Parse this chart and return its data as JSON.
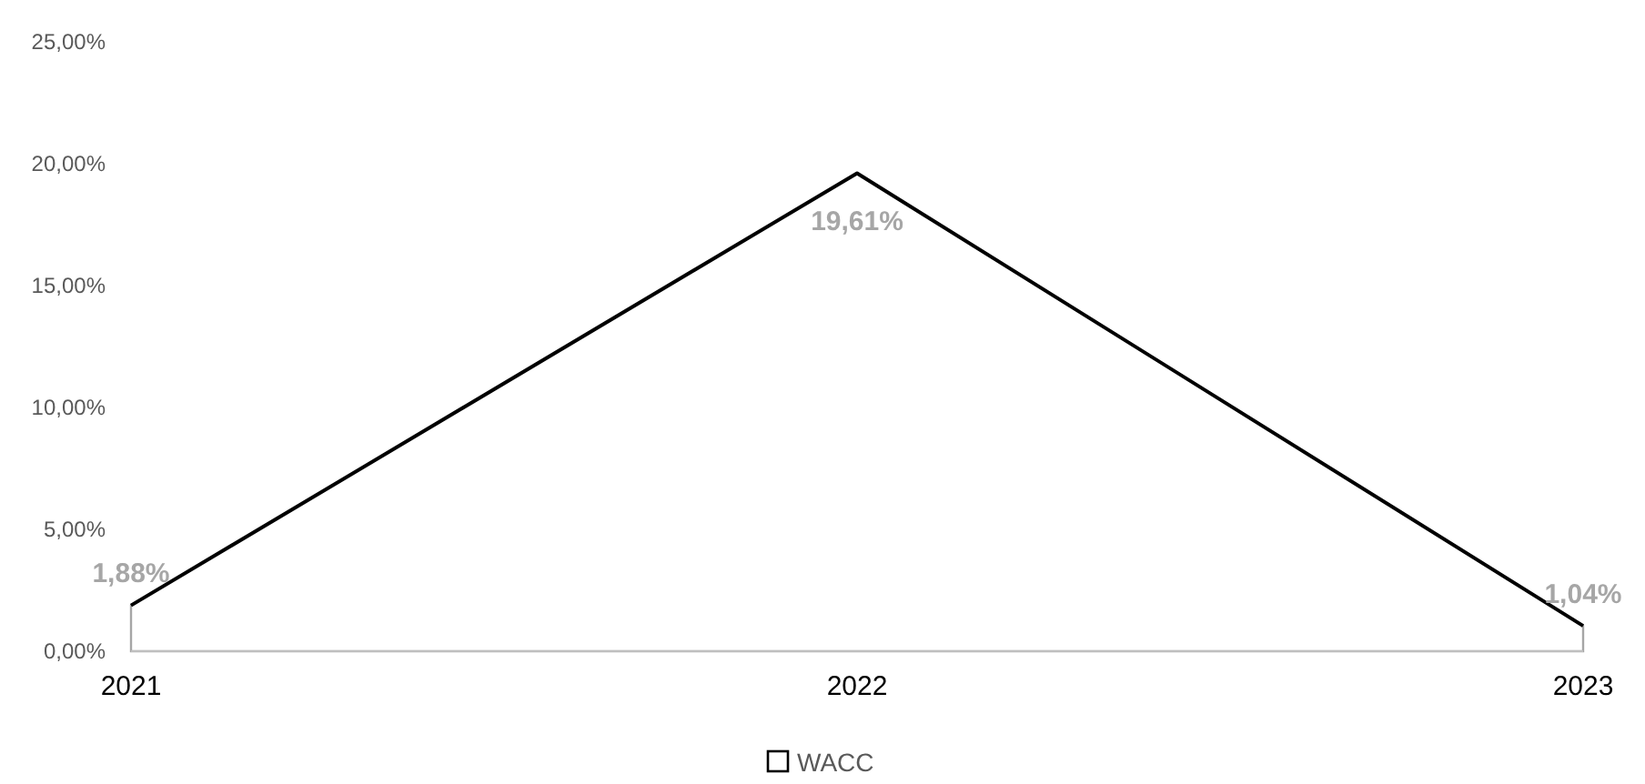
{
  "chart_data": {
    "type": "area",
    "categories": [
      "2021",
      "2022",
      "2023"
    ],
    "series": [
      {
        "name": "WACC",
        "color": "#ffffff",
        "values": [
          1.88,
          19.61,
          1.04
        ],
        "value_labels": [
          "1,88%",
          "19,61%",
          "1,04%"
        ]
      }
    ],
    "ylim": [
      0,
      25
    ],
    "yticks": [
      {
        "value": 0,
        "label": "0,00%"
      },
      {
        "value": 5,
        "label": "5,00%"
      },
      {
        "value": 10,
        "label": "10,00%"
      },
      {
        "value": 15,
        "label": "15,00%"
      },
      {
        "value": 20,
        "label": "20,00%"
      },
      {
        "value": 25,
        "label": "25,00%"
      }
    ],
    "grid": false,
    "legend": "bottom"
  }
}
